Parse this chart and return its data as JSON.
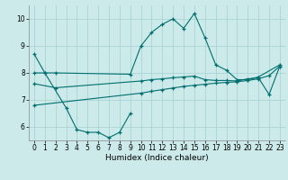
{
  "xlabel": "Humidex (Indice chaleur)",
  "bg_color": "#cceaea",
  "grid_color": "#aad4d4",
  "line_color": "#006e6e",
  "xlim": [
    -0.5,
    23.5
  ],
  "ylim": [
    5.5,
    10.5
  ],
  "yticks": [
    6,
    7,
    8,
    9,
    10
  ],
  "xticks": [
    0,
    1,
    2,
    3,
    4,
    5,
    6,
    7,
    8,
    9,
    10,
    11,
    12,
    13,
    14,
    15,
    16,
    17,
    18,
    19,
    20,
    21,
    22,
    23
  ],
  "series1_x": [
    0,
    1,
    3,
    4,
    5,
    6,
    7,
    8,
    9
  ],
  "series1_y": [
    8.7,
    8.0,
    6.7,
    5.9,
    5.8,
    5.8,
    5.6,
    5.8,
    6.5
  ],
  "series2_x": [
    0,
    1,
    2,
    9,
    10,
    11,
    12,
    13,
    14,
    15,
    16,
    17,
    18,
    19,
    20,
    21,
    23
  ],
  "series2_y": [
    8.0,
    8.0,
    8.0,
    7.95,
    9.0,
    9.5,
    9.8,
    10.0,
    9.65,
    10.2,
    9.3,
    8.3,
    8.1,
    7.75,
    7.75,
    7.85,
    8.3
  ],
  "series3_x": [
    0,
    2,
    10,
    11,
    12,
    13,
    14,
    15,
    16,
    17,
    18,
    19,
    20,
    21,
    22,
    23
  ],
  "series3_y": [
    7.6,
    7.45,
    7.7,
    7.75,
    7.78,
    7.82,
    7.85,
    7.88,
    7.75,
    7.72,
    7.72,
    7.7,
    7.78,
    7.82,
    7.2,
    8.25
  ],
  "series4_x": [
    0,
    10,
    11,
    12,
    13,
    14,
    15,
    16,
    17,
    18,
    19,
    20,
    21,
    22,
    23
  ],
  "series4_y": [
    6.8,
    7.25,
    7.32,
    7.38,
    7.44,
    7.5,
    7.54,
    7.58,
    7.62,
    7.65,
    7.67,
    7.72,
    7.78,
    7.9,
    8.25
  ]
}
